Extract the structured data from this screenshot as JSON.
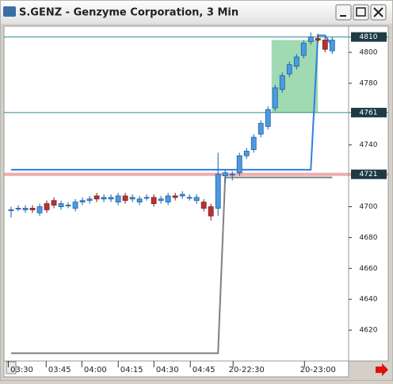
{
  "chart_data": {
    "type": "candlestick",
    "title": "S.GENZ - Genzyme Corporation, 3 Min",
    "open": [
      4698,
      4699,
      4698,
      4699,
      4696,
      4702,
      4704,
      4700,
      4701,
      4699,
      4703,
      4704,
      4707,
      4705,
      4705,
      4703,
      4707,
      4705,
      4703,
      4706,
      4706,
      4704,
      4703,
      4707,
      4707,
      4706,
      4704,
      4703,
      4700,
      4699,
      4720,
      4721,
      4722,
      4733,
      4737,
      4747,
      4752,
      4764,
      4776,
      4786,
      4791,
      4798,
      4807,
      4809,
      4808,
      4801
    ],
    "close": [
      4698,
      4699,
      4699,
      4698,
      4700,
      4698,
      4701,
      4702,
      4701,
      4703,
      4704,
      4705,
      4705,
      4706,
      4706,
      4707,
      4704,
      4706,
      4705,
      4706,
      4702,
      4705,
      4707,
      4706,
      4708,
      4706,
      4706,
      4699,
      4694,
      4721,
      4722,
      4721,
      4733,
      4736,
      4745,
      4754,
      4763,
      4777,
      4785,
      4792,
      4797,
      4806,
      4810,
      4808,
      4802,
      4808
    ],
    "high": [
      4700,
      4701,
      4701,
      4701,
      4702,
      4704,
      4706,
      4704,
      4703,
      4705,
      4706,
      4707,
      4709,
      4708,
      4708,
      4709,
      4709,
      4708,
      4707,
      4708,
      4708,
      4707,
      4709,
      4709,
      4710,
      4708,
      4708,
      4705,
      4702,
      4735,
      4724,
      4723,
      4735,
      4738,
      4747,
      4756,
      4765,
      4779,
      4787,
      4794,
      4799,
      4808,
      4813,
      4812,
      4810,
      4810
    ],
    "low": [
      4693,
      4697,
      4696,
      4696,
      4694,
      4696,
      4699,
      4698,
      4699,
      4697,
      4701,
      4702,
      4703,
      4703,
      4703,
      4701,
      4702,
      4703,
      4701,
      4704,
      4700,
      4702,
      4701,
      4704,
      4705,
      4704,
      4702,
      4697,
      4691,
      4694,
      4716,
      4717,
      4720,
      4731,
      4735,
      4745,
      4750,
      4762,
      4774,
      4784,
      4789,
      4796,
      4805,
      4807,
      4800,
      4799
    ],
    "up_color": "#4c9be0",
    "down_color": "#b83232",
    "overlays": [
      {
        "color": "#2f7fe0",
        "values": [
          4724,
          4724,
          4724,
          4724,
          4724,
          4724,
          4724,
          4724,
          4724,
          4724,
          4724,
          4724,
          4724,
          4724,
          4724,
          4724,
          4724,
          4724,
          4724,
          4724,
          4724,
          4724,
          4724,
          4724,
          4724,
          4724,
          4724,
          4724,
          4724,
          4724,
          4724,
          4724,
          4724,
          4724,
          4724,
          4724,
          4724,
          4724,
          4724,
          4724,
          4724,
          4724,
          4724,
          4811,
          4811,
          4804
        ]
      },
      {
        "color": "#808080",
        "values": [
          4605,
          4605,
          4605,
          4605,
          4605,
          4605,
          4605,
          4605,
          4605,
          4605,
          4605,
          4605,
          4605,
          4605,
          4605,
          4605,
          4605,
          4605,
          4605,
          4605,
          4605,
          4605,
          4605,
          4605,
          4605,
          4605,
          4605,
          4605,
          4605,
          4605,
          4719,
          4719,
          4719,
          4719,
          4719,
          4719,
          4719,
          4719,
          4719,
          4719,
          4719,
          4719,
          4719,
          4719,
          4719,
          4719
        ]
      }
    ],
    "levels": [
      {
        "value": 4810,
        "color": "#2e8b8b"
      },
      {
        "value": 4761,
        "color": "#2e8b8b"
      },
      {
        "value": 4721,
        "color": "#e07a7a"
      }
    ],
    "zone": {
      "x": [
        36.5,
        43
      ],
      "y": [
        4761,
        4808
      ],
      "color": "#8fd4a4"
    },
    "xlim": [
      -1,
      47.3
    ],
    "xticks": [
      {
        "value": 1.5,
        "label": "03:30"
      },
      {
        "value": 6.8,
        "label": "03:45"
      },
      {
        "value": 11.8,
        "label": "04:00"
      },
      {
        "value": 16.9,
        "label": "04:15"
      },
      {
        "value": 21.9,
        "label": "04:30"
      },
      {
        "value": 27,
        "label": "04:45"
      },
      {
        "value": 33,
        "label": "20-22:30"
      },
      {
        "value": 43,
        "label": "20-23:00"
      }
    ],
    "ylim": [
      4600,
      4817
    ],
    "yticks": [
      4620,
      4640,
      4660,
      4680,
      4700,
      4740,
      4780,
      4800
    ]
  }
}
